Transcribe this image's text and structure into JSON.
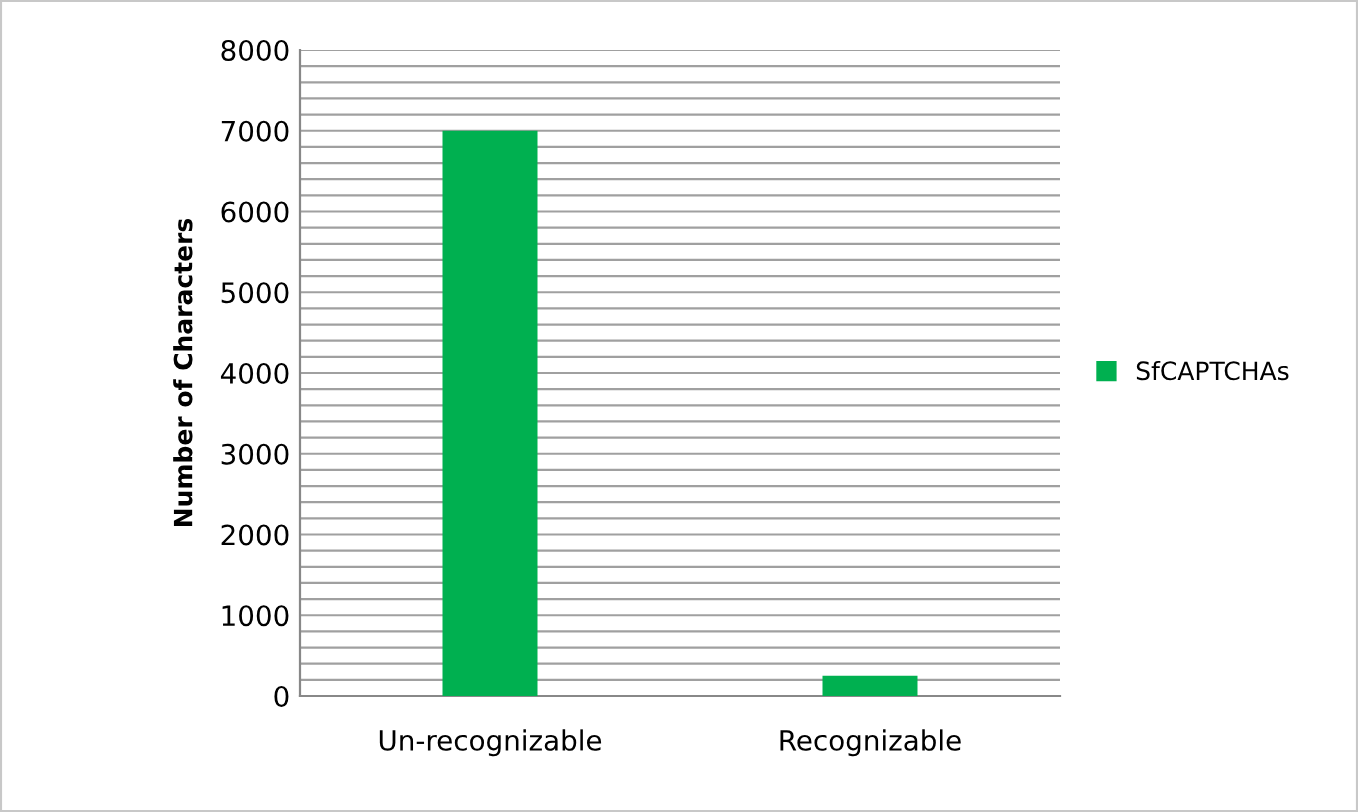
{
  "chart_data": {
    "type": "bar",
    "ylabel": "Number of Characters",
    "categories": [
      "Un-recognizable",
      "Recognizable"
    ],
    "series": [
      {
        "name": "SfCAPTCHAs",
        "color": "#00b050",
        "values": [
          7000,
          250
        ]
      }
    ],
    "ylim": [
      0,
      8000
    ],
    "yticks": [
      0,
      {
        "value": 200,
        "label": null
      },
      {
        "value": 400,
        "label": null
      },
      {
        "value": 600,
        "label": null
      },
      {
        "value": 800,
        "label": null
      },
      1000,
      {
        "value": 1200,
        "label": null
      },
      {
        "value": 1400,
        "label": null
      },
      {
        "value": 1600,
        "label": null
      },
      {
        "value": 1800,
        "label": null
      },
      2000,
      {
        "value": 2200,
        "label": null
      },
      {
        "value": 2400,
        "label": null
      },
      {
        "value": 2600,
        "label": null
      },
      {
        "value": 2800,
        "label": null
      },
      3000,
      {
        "value": 3200,
        "label": null
      },
      {
        "value": 3400,
        "label": null
      },
      {
        "value": 3600,
        "label": null
      },
      {
        "value": 3800,
        "label": null
      },
      4000,
      {
        "value": 4200,
        "label": null
      },
      {
        "value": 4400,
        "label": null
      },
      {
        "value": 4600,
        "label": null
      },
      {
        "value": 4800,
        "label": null
      },
      5000,
      {
        "value": 5200,
        "label": null
      },
      {
        "value": 5400,
        "label": null
      },
      {
        "value": 5600,
        "label": null
      },
      {
        "value": 5800,
        "label": null
      },
      6000,
      {
        "value": 6200,
        "label": null
      },
      {
        "value": 6400,
        "label": null
      },
      {
        "value": 6600,
        "label": null
      },
      {
        "value": 6800,
        "label": null
      },
      7000,
      {
        "value": 7200,
        "label": null
      },
      {
        "value": 7400,
        "label": null
      },
      {
        "value": 7600,
        "label": null
      },
      {
        "value": 7800,
        "label": null
      },
      8000
    ],
    "grid": "y",
    "legend": "right"
  }
}
